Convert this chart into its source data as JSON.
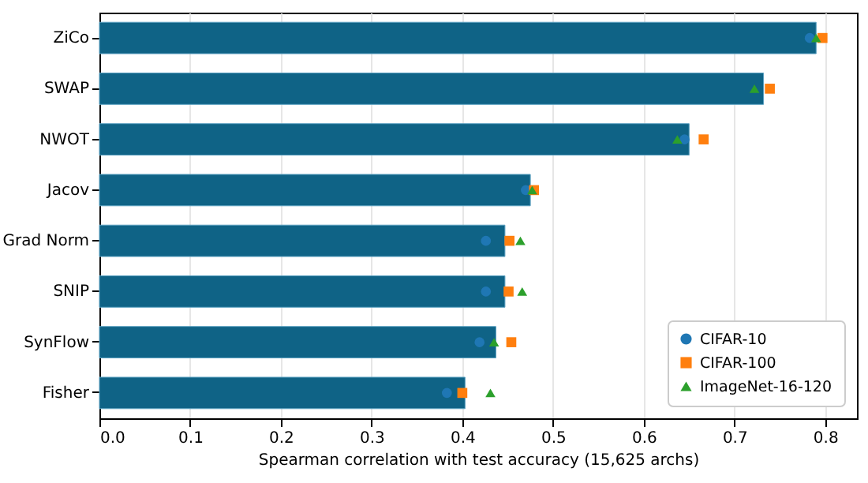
{
  "chart_data": {
    "type": "bar",
    "orientation": "horizontal",
    "xlabel": "Spearman correlation with test accuracy (15,625 archs)",
    "categories": [
      "ZiCo",
      "SWAP",
      "NWOT",
      "Jacov",
      "Grad Norm",
      "SNIP",
      "SynFlow",
      "Fisher"
    ],
    "series": [
      {
        "color": "#0f6386",
        "values": [
          0.79,
          0.732,
          0.65,
          0.475,
          0.447,
          0.447,
          0.437,
          0.403
        ]
      },
      {
        "type": "scatter",
        "name": "CIFAR-10",
        "color": "#1f77b4",
        "marker": "circle",
        "values": [
          0.783,
          null,
          0.645,
          0.47,
          0.426,
          0.426,
          0.419,
          0.383
        ]
      },
      {
        "type": "scatter",
        "name": "CIFAR-100",
        "color": "#ff7f0e",
        "marker": "square",
        "values": [
          0.797,
          0.739,
          0.666,
          0.479,
          0.452,
          0.451,
          0.454,
          0.4
        ]
      },
      {
        "type": "scatter",
        "name": "ImageNet-16-120",
        "color": "#2ca02c",
        "marker": "triangle",
        "values": [
          0.79,
          0.722,
          0.637,
          0.477,
          0.464,
          0.466,
          0.435,
          0.431
        ]
      }
    ],
    "xlim": [
      0,
      0.835
    ],
    "xticks": [
      {
        "value": 0,
        "label": "0.0"
      },
      0.1,
      0.2,
      0.3,
      0.4,
      0.5,
      0.6,
      0.7,
      0.8
    ],
    "grid": "x",
    "legend": "bottom right"
  }
}
